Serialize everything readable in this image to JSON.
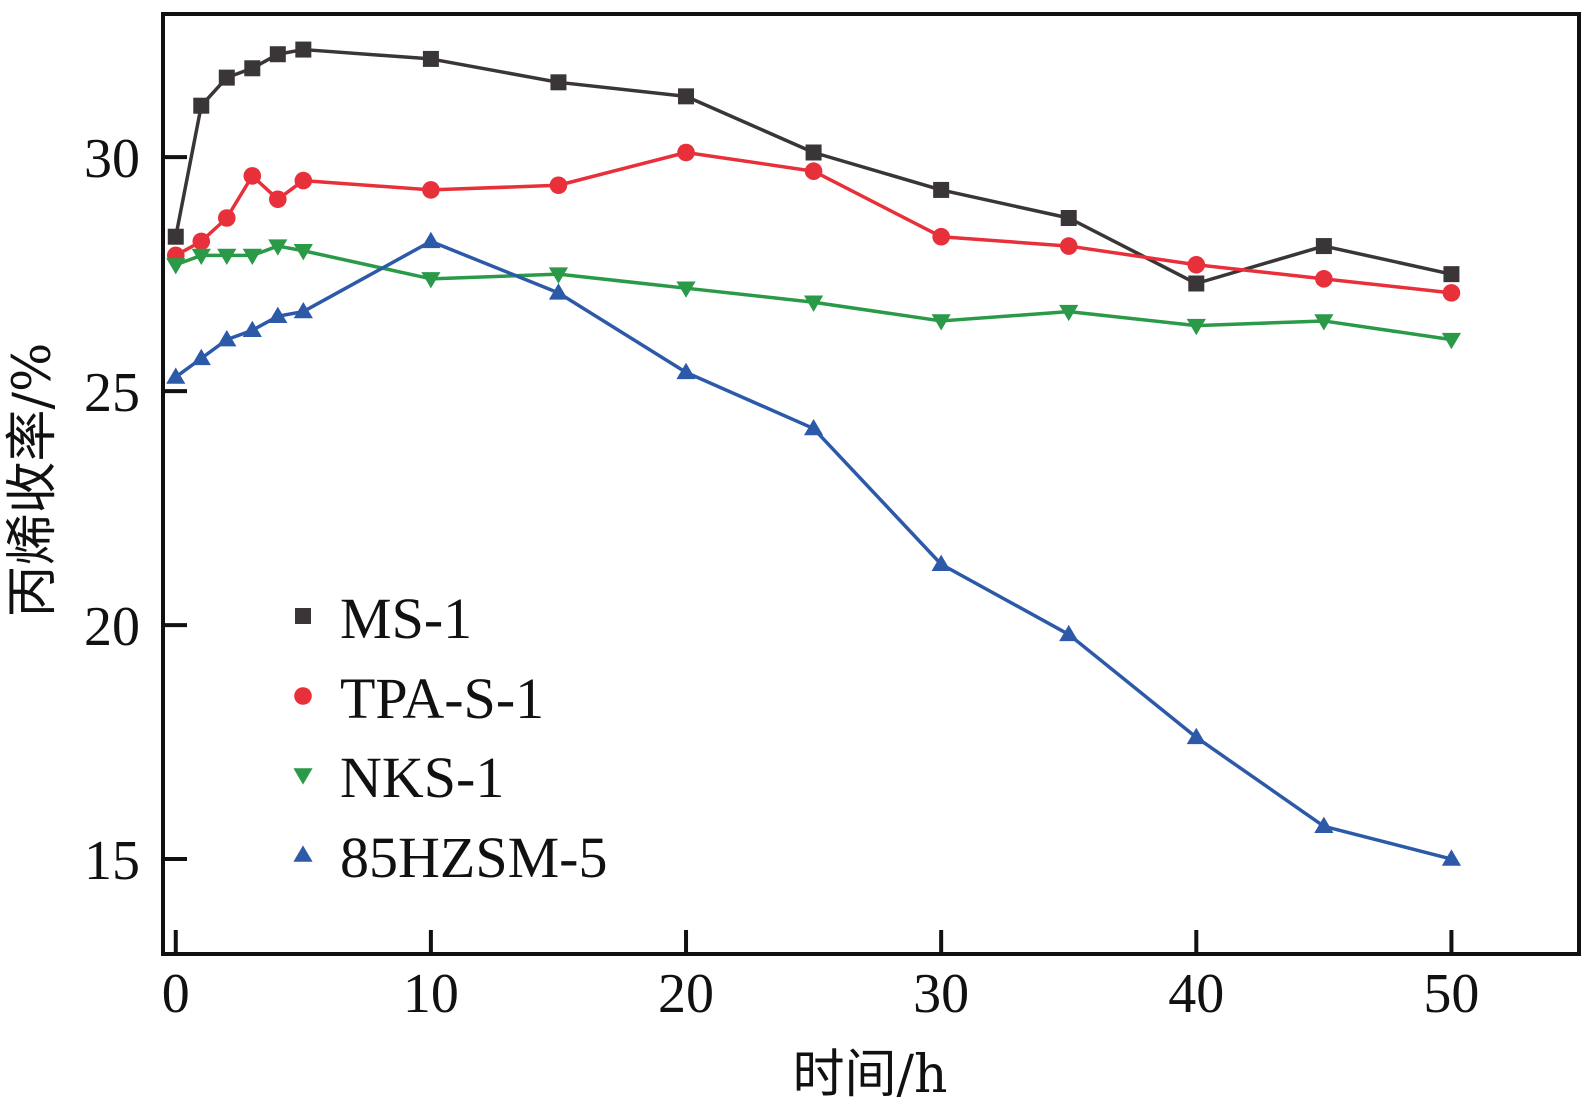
{
  "chart_data": {
    "type": "line",
    "title": "",
    "xlabel": "时间/h",
    "ylabel": "丙烯收率/%",
    "xlim": [
      -0.5,
      55
    ],
    "ylim": [
      12.97,
      33.06
    ],
    "xticks": [
      0,
      10,
      20,
      30,
      40,
      50
    ],
    "xtick_labels": [
      "0",
      "10",
      "20",
      "30",
      "40",
      "50"
    ],
    "yticks": [
      15,
      20,
      25,
      30
    ],
    "ytick_labels": [
      "15",
      "20",
      "25",
      "30"
    ],
    "grid": false,
    "legend_position": "lower-left",
    "x": [
      0,
      1,
      2,
      3,
      4,
      5,
      10,
      15,
      20,
      25,
      30,
      35,
      40,
      45,
      50
    ],
    "series": [
      {
        "name": "MS-1",
        "marker": "square",
        "color": "#3a3536",
        "values": [
          28.3,
          31.1,
          31.7,
          31.9,
          32.2,
          32.3,
          32.1,
          31.6,
          31.3,
          30.1,
          29.3,
          28.7,
          27.3,
          28.1,
          27.5
        ]
      },
      {
        "name": "TPA-S-1",
        "marker": "circle",
        "color": "#e8303a",
        "values": [
          27.9,
          28.2,
          28.7,
          29.6,
          29.1,
          29.5,
          29.3,
          29.4,
          30.1,
          29.7,
          28.3,
          28.1,
          27.7,
          27.4,
          27.1
        ]
      },
      {
        "name": "NKS-1",
        "marker": "triangle-down",
        "color": "#2a9a48",
        "values": [
          27.7,
          27.9,
          27.9,
          27.9,
          28.1,
          28.0,
          27.4,
          27.5,
          27.2,
          26.9,
          26.5,
          26.7,
          26.4,
          26.5,
          26.1
        ]
      },
      {
        "name": "85HZSM-5",
        "marker": "triangle-up",
        "color": "#2d5aa8",
        "values": [
          25.3,
          25.7,
          26.1,
          26.3,
          26.6,
          26.7,
          28.2,
          27.1,
          25.4,
          24.2,
          21.3,
          19.8,
          17.6,
          15.7,
          15.0
        ]
      }
    ]
  }
}
